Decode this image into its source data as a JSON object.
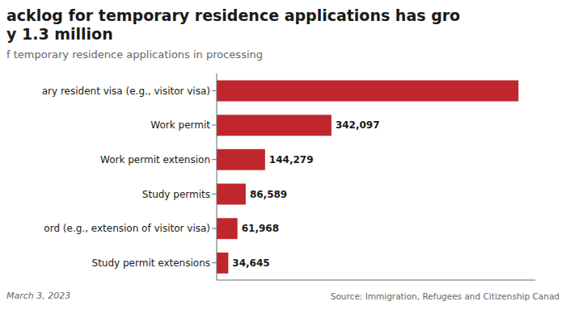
{
  "chart_data": {
    "type": "bar",
    "orientation": "horizontal",
    "title": "acklog for temporary residence applications has gro\ny 1.3 million",
    "subtitle": "f temporary residence applications in processing",
    "categories": [
      "ary resident visa (e.g., visitor visa)",
      "Work permit",
      "Work permit extension",
      "Study permits",
      "ord (e.g., extension of visitor visa)",
      "Study permit extensions"
    ],
    "values": [
      900000,
      342097,
      144279,
      86589,
      61968,
      34645
    ],
    "value_labels": [
      null,
      "342,097",
      "144,279",
      "86,589",
      "61,968",
      "34,645"
    ],
    "data_labels": true,
    "color": "#c0272d",
    "xlim": [
      0,
      950000
    ],
    "grid": false,
    "tick_labels": "y",
    "annotations": [
      "March 3, 2023",
      "Source: Immigration, Refugees and Citizenship Canad"
    ]
  }
}
